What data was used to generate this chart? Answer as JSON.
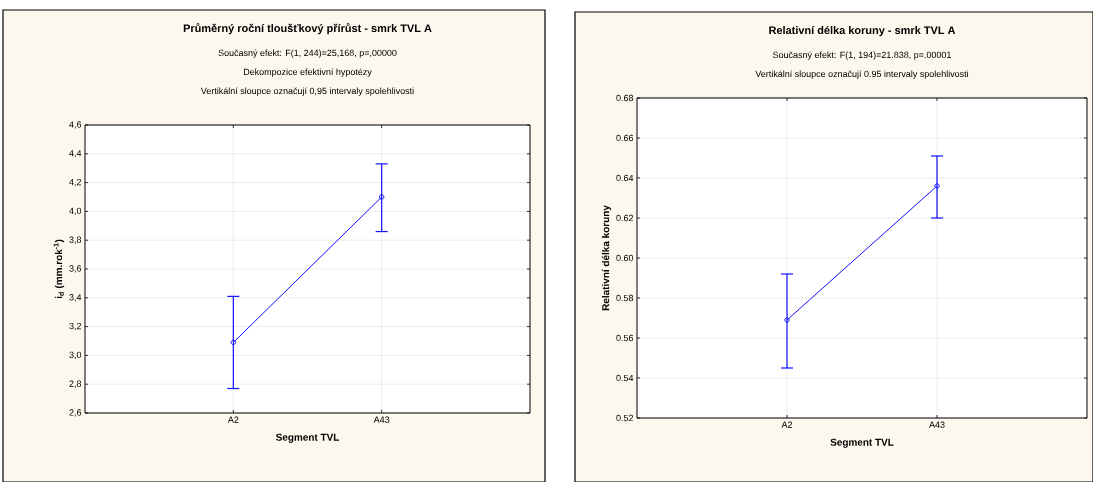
{
  "chart_data": [
    {
      "type": "line",
      "title": "Průměrný roční tloušťkový přírůst - smrk TVL A",
      "subtitle": "Současný efekt: F(1, 244)=25,168, p=,00000",
      "annotations": [
        "Dekompozice efektivní hypotézy",
        "Vertikální sloupce označují 0,95 intervaly spolehlivosti"
      ],
      "xlabel": "Segment TVL",
      "ylabel": "i$_{d}$ (mm.rok$^{-1}$)",
      "categories": [
        "A2",
        "A43"
      ],
      "series": [
        {
          "color": "#1010ff",
          "values": [
            3.09,
            4.1
          ],
          "errors": [
            [
              2.77,
              3.41
            ],
            [
              3.86,
              4.33
            ]
          ]
        }
      ],
      "ylim": [
        2.6,
        4.6
      ],
      "yticks": [
        {
          "value": 2.6,
          "label": "2,6"
        },
        {
          "value": 2.8,
          "label": "2,8"
        },
        {
          "value": 3.0,
          "label": "3,0"
        },
        {
          "value": 3.2,
          "label": "3,2"
        },
        {
          "value": 3.4,
          "label": "3,4"
        },
        {
          "value": 3.6,
          "label": "3,6"
        },
        {
          "value": 3.8,
          "label": "3,8"
        },
        {
          "value": 4.0,
          "label": "4,0"
        },
        {
          "value": 4.2,
          "label": "4,2"
        },
        {
          "value": 4.4,
          "label": "4,4"
        },
        {
          "value": 4.6,
          "label": "4,6"
        }
      ],
      "grid": true,
      "marker": "circle",
      "line_style": "solid"
    },
    {
      "type": "line",
      "title": "Relativní délka koruny - smrk TVL A",
      "subtitle": "Současný efekt: F(1, 194)=21.838, p=.00001",
      "annotations": [
        "Vertikální sloupce označují 0.95 intervaly spolehlivosti"
      ],
      "xlabel": "Segment TVL",
      "ylabel": "Relativní délka koruny",
      "categories": [
        "A2",
        "A43"
      ],
      "series": [
        {
          "color": "#1010ff",
          "values": [
            0.569,
            0.636
          ],
          "errors": [
            [
              0.545,
              0.592
            ],
            [
              0.62,
              0.651
            ]
          ]
        }
      ],
      "ylim": [
        0.52,
        0.68
      ],
      "yticks": [
        {
          "value": 0.52,
          "label": "0.52"
        },
        {
          "value": 0.54,
          "label": "0.54"
        },
        {
          "value": 0.56,
          "label": "0.56"
        },
        {
          "value": 0.58,
          "label": "0.58"
        },
        {
          "value": 0.6,
          "label": "0.60"
        },
        {
          "value": 0.62,
          "label": "0.62"
        },
        {
          "value": 0.64,
          "label": "0.64"
        },
        {
          "value": 0.66,
          "label": "0.66"
        },
        {
          "value": 0.68,
          "label": "0.68"
        }
      ],
      "grid": true,
      "marker": "circle",
      "line_style": "solid"
    }
  ]
}
